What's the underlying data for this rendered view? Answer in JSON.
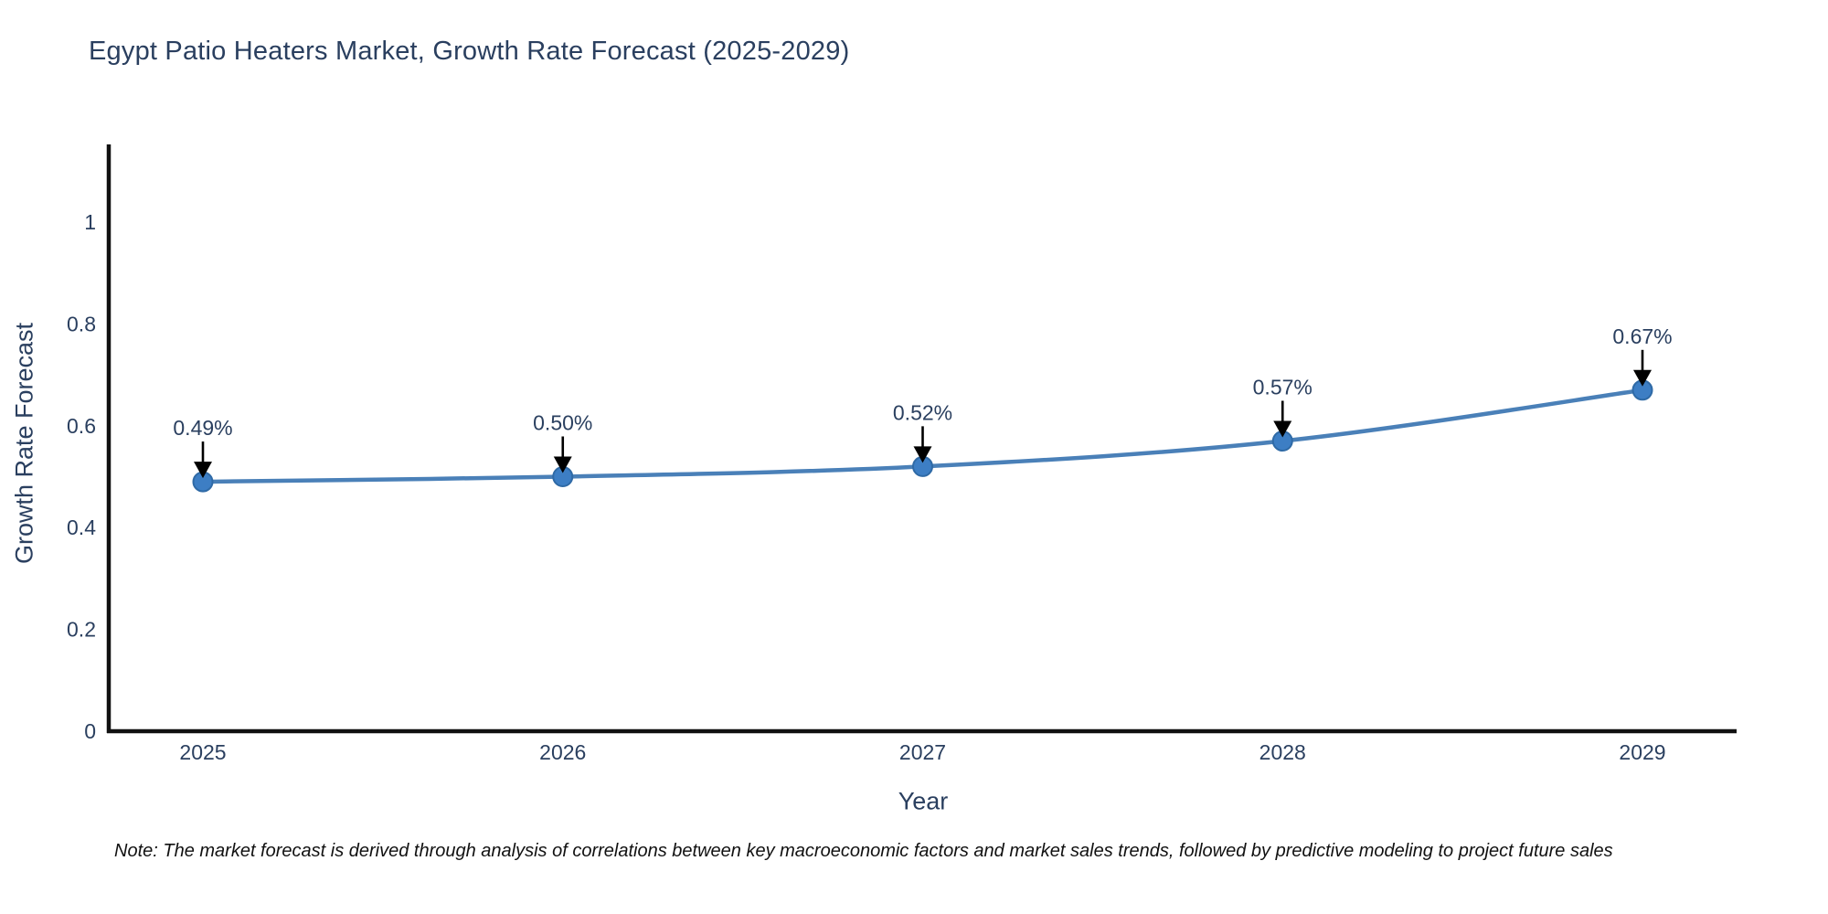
{
  "title": "Egypt Patio Heaters Market, Growth Rate Forecast (2025-2029)",
  "note": "Note: The market forecast is derived through analysis of correlations between key macroeconomic factors and market sales trends, followed by predictive modeling to project future sales",
  "chart_data": {
    "type": "line",
    "title": "Egypt Patio Heaters Market, Growth Rate Forecast (2025-2029)",
    "xlabel": "Year",
    "ylabel": "Growth Rate Forecast",
    "x": [
      "2025",
      "2026",
      "2027",
      "2028",
      "2029"
    ],
    "y": [
      0.49,
      0.5,
      0.52,
      0.57,
      0.67
    ],
    "point_labels": [
      "0.49%",
      "0.50%",
      "0.52%",
      "0.57%",
      "0.67%"
    ],
    "ytick_labels": [
      "0",
      "0.2",
      "0.4",
      "0.6",
      "0.8",
      "1"
    ],
    "ytick_values": [
      0,
      0.2,
      0.4,
      0.6,
      0.8,
      1
    ],
    "ylim": [
      0,
      1.15
    ],
    "grid": false,
    "legend_position": "none",
    "colors": {
      "line": "#4a80b8",
      "marker": "#3d7ec4",
      "marker_edge": "#2f6aa6",
      "axis": "#111111",
      "tick_text": "#2a3f5f",
      "title_text": "#2a3f5f",
      "annotation_text": "#2a3f5f",
      "annotation_arrow": "#000000",
      "note_text": "#111111",
      "background": "#ffffff"
    }
  }
}
